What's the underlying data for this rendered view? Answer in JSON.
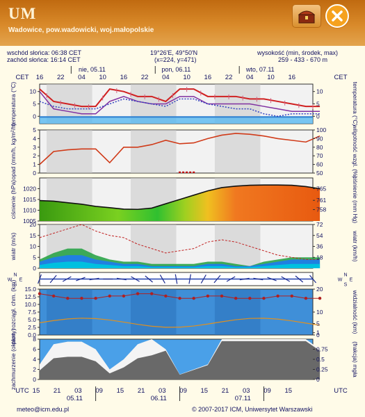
{
  "header": {
    "brand": "UM",
    "location": "Wadowice, pow.wadowicki, woj.małopolskie",
    "chest_icon": "chest-icon",
    "close_icon": "close-icon"
  },
  "info": {
    "sunrise": "wschód słońca: 06:38 CET",
    "sunset": "zachód słońca: 16:14 CET",
    "coords": "19°26'E, 49°50'N",
    "grid": "(x=224, y=471)",
    "height_label": "wysokość (min, środek, max)",
    "height_values": "259 - 433 - 670 m"
  },
  "footer": {
    "email": "meteo@icm.edu.pl",
    "copyright": "© 2007-2017 ICM, Uniwersytet Warszawski"
  },
  "chart_data": [
    {
      "type": "line",
      "name": "temperature",
      "tz_left": "CET",
      "tz_right": "CET",
      "days": [
        {
          "label": "nie, 05.11",
          "start": 10
        },
        {
          "label": "pon, 06.11",
          "start": 34
        },
        {
          "label": "wto, 07.11",
          "start": 58
        }
      ],
      "hour_ticks": [
        {
          "t": 0,
          "label": "16"
        },
        {
          "t": 6,
          "label": "22"
        },
        {
          "t": 12,
          "label": "04"
        },
        {
          "t": 18,
          "label": "10"
        },
        {
          "t": 24,
          "label": "16"
        },
        {
          "t": 30,
          "label": "22"
        },
        {
          "t": 36,
          "label": "04"
        },
        {
          "t": 42,
          "label": "10"
        },
        {
          "t": 48,
          "label": "16"
        },
        {
          "t": 54,
          "label": "22"
        },
        {
          "t": 60,
          "label": "04"
        },
        {
          "t": 66,
          "label": "10"
        },
        {
          "t": 72,
          "label": "16"
        }
      ],
      "ylabel_left": "temperatura (°C)",
      "ylabel_right": "temperatura (°C)",
      "ylim": [
        -3,
        13
      ],
      "yticks": [
        0,
        5,
        10
      ],
      "x": [
        0,
        4,
        8,
        12,
        16,
        20,
        24,
        28,
        32,
        36,
        40,
        44,
        48,
        52,
        56,
        60,
        64,
        68,
        72,
        76,
        80
      ],
      "series": [
        {
          "values": [
            11,
            6,
            5,
            4,
            4,
            11,
            10,
            8,
            8,
            6,
            11,
            11,
            8,
            8,
            8,
            7,
            7,
            6,
            5,
            4,
            4
          ]
        },
        {
          "values": [
            10,
            3,
            2,
            1,
            1,
            6,
            8,
            6,
            5,
            5,
            8,
            8,
            5,
            5,
            5,
            5,
            4,
            3,
            2,
            2,
            2
          ]
        },
        {
          "values": [
            6,
            4,
            3,
            3,
            3,
            5,
            7,
            6,
            5,
            4,
            7,
            7,
            5,
            4,
            3,
            3,
            1,
            0,
            1,
            1,
            1
          ]
        }
      ]
    },
    {
      "type": "line",
      "name": "precipitation-humidity",
      "ylabel_left": "opad (mm/h, kg/m²/h)",
      "ylabel_right": "wilgotność wzgl. (%)",
      "ylim_left": [
        0,
        5
      ],
      "yticks_left": [
        0,
        1,
        2,
        3,
        4,
        5
      ],
      "ylim_right": [
        50,
        100
      ],
      "yticks_right": [
        50,
        60,
        70,
        80,
        90,
        100
      ],
      "x": [
        0,
        4,
        8,
        12,
        16,
        20,
        24,
        28,
        32,
        36,
        40,
        44,
        48,
        52,
        56,
        60,
        64,
        68,
        72,
        76,
        80
      ],
      "humidity": [
        60,
        75,
        77,
        78,
        78,
        62,
        80,
        80,
        83,
        88,
        84,
        85,
        90,
        94,
        96,
        95,
        93,
        90,
        88,
        86,
        93
      ],
      "precip_x": [
        40,
        41,
        42,
        43,
        44
      ],
      "precip": [
        0.1,
        0.1,
        0.1,
        0.1,
        0.1
      ]
    },
    {
      "type": "area",
      "name": "pressure",
      "ylabel_left": "ciśnienie (hPa)",
      "ylabel_right": "ciśnienie (mm Hg)",
      "ylim": [
        1005,
        1025
      ],
      "yticks_left": [
        1005,
        1010,
        1015,
        1020
      ],
      "ticks_right": [
        {
          "v": 1010.3,
          "label": "758"
        },
        {
          "v": 1014.6,
          "label": "761"
        },
        {
          "v": 1020.0,
          "label": "765"
        }
      ],
      "x": [
        0,
        4,
        8,
        12,
        16,
        20,
        24,
        28,
        32,
        36,
        40,
        44,
        48,
        52,
        56,
        60,
        64,
        68,
        72,
        76,
        80
      ],
      "values": [
        1014.5,
        1014.2,
        1013.5,
        1012.8,
        1011.8,
        1011.2,
        1010.5,
        1010.4,
        1011.0,
        1013.0,
        1015.0,
        1017.0,
        1019.0,
        1020.5,
        1021.2,
        1021.6,
        1021.7,
        1021.7,
        1021.6,
        1021.0,
        1020.0
      ]
    },
    {
      "type": "area",
      "name": "wind",
      "ylabel_left": "wiatr (m/s)",
      "ylabel_right": "wiatr (km/h)",
      "ylim": [
        0,
        20
      ],
      "yticks_left": [
        0,
        5,
        10,
        15,
        20
      ],
      "ticks_right": [
        {
          "v": 5,
          "label": "18"
        },
        {
          "v": 10,
          "label": "36"
        },
        {
          "v": 15,
          "label": "54"
        },
        {
          "v": 20,
          "label": "72"
        }
      ],
      "x": [
        0,
        4,
        8,
        12,
        16,
        20,
        24,
        28,
        32,
        36,
        40,
        44,
        48,
        52,
        56,
        60,
        64,
        68,
        72,
        76,
        80
      ],
      "gust": [
        14,
        16,
        18,
        20,
        17,
        15,
        14,
        11,
        9,
        7,
        8,
        9,
        12,
        13,
        12,
        10,
        8,
        6,
        5,
        4,
        4
      ],
      "speed": [
        3,
        5,
        6,
        6,
        4,
        3,
        2,
        2,
        1,
        1,
        1,
        1,
        2,
        2,
        1,
        1,
        2,
        3,
        4,
        4,
        4
      ],
      "speed_max": [
        4,
        7,
        9,
        9,
        6,
        4,
        3,
        3,
        2,
        2,
        2,
        2,
        3,
        3,
        2,
        1,
        3,
        4,
        5,
        5,
        5
      ]
    },
    {
      "type": "line",
      "name": "wind-direction",
      "compass_labels": [
        "N",
        "E",
        "S",
        "W"
      ],
      "directions_deg": [
        200,
        220,
        240,
        250,
        260,
        270,
        280,
        300,
        310,
        330,
        350,
        10,
        30,
        40,
        60,
        80,
        100,
        110,
        120,
        130,
        140
      ]
    },
    {
      "type": "line",
      "name": "cloud-base-visibility",
      "ylabel_left": "plon. rozciągł. chm. (km)",
      "ylabel_right": "widzialność (km)",
      "ylim_left": [
        0,
        15
      ],
      "yticks_left": [
        0.0,
        2.5,
        5.0,
        7.5,
        10.0,
        12.5,
        15.0
      ],
      "ylim_right": [
        0,
        20
      ],
      "yticks_right": [
        0,
        1,
        5,
        10,
        20
      ],
      "x": [
        0,
        4,
        8,
        12,
        16,
        20,
        24,
        28,
        32,
        36,
        40,
        44,
        48,
        52,
        56,
        60,
        64,
        68,
        72,
        76,
        80
      ],
      "visibility": [
        18,
        17,
        16,
        16,
        16,
        17,
        17,
        18,
        18,
        17,
        16,
        16,
        17,
        17,
        16,
        16,
        16,
        17,
        17,
        16,
        16
      ]
    },
    {
      "type": "area",
      "name": "cloudiness",
      "ylabel_left": "zachmurzenie (oktanty)",
      "ylabel_right": "(frakcja) mgła",
      "ylim_left": [
        0,
        8
      ],
      "yticks_left": [
        0,
        2,
        4,
        6,
        8
      ],
      "ylim_right": [
        0,
        1
      ],
      "yticks_right": [
        0,
        0.25,
        0.5,
        0.75
      ],
      "x": [
        0,
        4,
        8,
        12,
        16,
        20,
        24,
        28,
        32,
        36,
        40,
        44,
        48,
        52,
        56,
        60,
        64,
        68,
        72,
        76,
        80
      ],
      "total_cloud": [
        3,
        7,
        7.5,
        7.5,
        6,
        2,
        4,
        7,
        8,
        6,
        1,
        2,
        3,
        8,
        8,
        8,
        8,
        8,
        8,
        8,
        6
      ],
      "utc_ticks": [
        {
          "t": -1,
          "label": "15"
        },
        {
          "t": 5,
          "label": "21"
        },
        {
          "t": 11,
          "label": "03"
        },
        {
          "t": 17,
          "label": "09"
        },
        {
          "t": 23,
          "label": "15"
        },
        {
          "t": 29,
          "label": "21"
        },
        {
          "t": 35,
          "label": "03"
        },
        {
          "t": 41,
          "label": "09"
        },
        {
          "t": 47,
          "label": "15"
        },
        {
          "t": 53,
          "label": "21"
        },
        {
          "t": 59,
          "label": "03"
        },
        {
          "t": 65,
          "label": "09"
        },
        {
          "t": 71,
          "label": "15"
        }
      ],
      "utc_days": [
        {
          "t": 23,
          "label": "05.11"
        },
        {
          "t": 47,
          "label": "06.11"
        },
        {
          "t": 71,
          "label": "07.11"
        }
      ],
      "tz_left": "UTC",
      "tz_right": "UTC"
    }
  ]
}
